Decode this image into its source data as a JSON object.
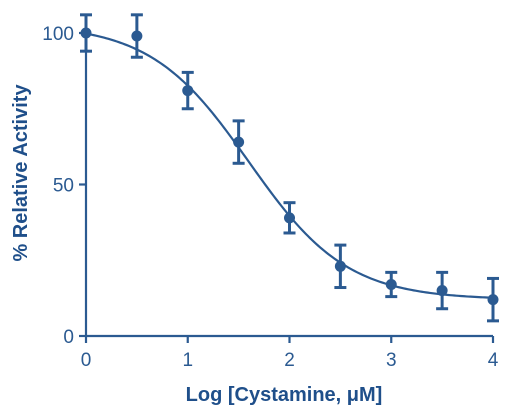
{
  "chart_data": {
    "type": "scatter",
    "xlabel": "Log [Cystamine, μM]",
    "ylabel": "% Relative Activity",
    "xlim": [
      0,
      4
    ],
    "ylim": [
      0,
      105
    ],
    "x_ticks": [
      0,
      1,
      2,
      3,
      4
    ],
    "y_ticks": [
      0,
      50,
      100
    ],
    "x_tick_labels": [
      "0",
      "1",
      "2",
      "3",
      "4"
    ],
    "y_tick_labels": [
      "0",
      "50",
      "100"
    ],
    "grid": false,
    "legend": "none",
    "color": "#2b5a91",
    "points": [
      {
        "x": 0.0,
        "y": 100,
        "err": 6
      },
      {
        "x": 0.5,
        "y": 99,
        "err": 7
      },
      {
        "x": 1.0,
        "y": 81,
        "err": 6
      },
      {
        "x": 1.5,
        "y": 64,
        "err": 7
      },
      {
        "x": 2.0,
        "y": 39,
        "err": 5
      },
      {
        "x": 2.5,
        "y": 23,
        "err": 7
      },
      {
        "x": 3.0,
        "y": 17,
        "err": 4
      },
      {
        "x": 3.5,
        "y": 15,
        "err": 6
      },
      {
        "x": 4.0,
        "y": 12,
        "err": 7
      }
    ],
    "fit": {
      "type": "4PL",
      "top": 103,
      "bottom": 12,
      "logEC50": 1.6,
      "hill": -0.9
    }
  }
}
